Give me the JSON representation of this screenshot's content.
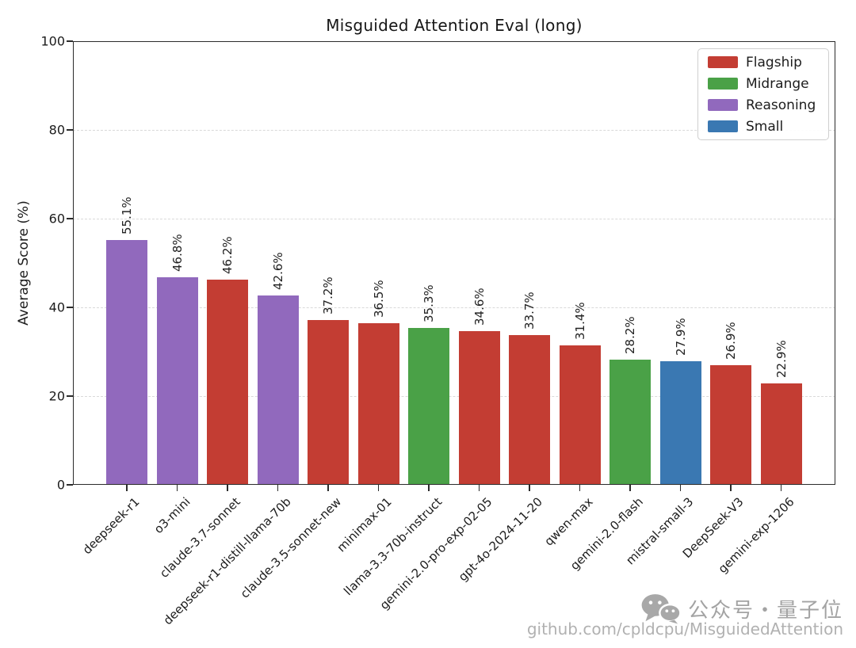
{
  "title": "Misguided Attention Eval (long)",
  "chart_data": {
    "type": "bar",
    "title": "Misguided Attention Eval (long)",
    "xlabel": "",
    "ylabel": "Average Score (%)",
    "ylim": [
      0,
      100
    ],
    "yticks": [
      0,
      20,
      40,
      60,
      80,
      100
    ],
    "grid": "horizontal-dashed",
    "legend_position": "upper right",
    "value_label_suffix": "%",
    "x_label_rotation_deg": 45,
    "value_label_rotation_deg": 90,
    "categories": [
      "deepseek-r1",
      "o3-mini",
      "claude-3.7-sonnet",
      "deepseek-r1-distill-llama-70b",
      "claude-3.5-sonnet-new",
      "minimax-01",
      "llama-3.3-70b-instruct",
      "gemini-2.0-pro-exp-02-05",
      "gpt-4o-2024-11-20",
      "qwen-max",
      "gemini-2.0-flash",
      "mistral-small-3",
      "DeepSeek-V3",
      "gemini-exp-1206"
    ],
    "values": [
      55.1,
      46.8,
      46.2,
      42.6,
      37.2,
      36.5,
      35.3,
      34.6,
      33.7,
      31.4,
      28.2,
      27.9,
      26.9,
      22.9
    ],
    "groups": [
      "Reasoning",
      "Reasoning",
      "Flagship",
      "Reasoning",
      "Flagship",
      "Flagship",
      "Midrange",
      "Flagship",
      "Flagship",
      "Flagship",
      "Midrange",
      "Small",
      "Flagship",
      "Flagship"
    ],
    "group_colors": {
      "Flagship": "#c33d33",
      "Midrange": "#4aa147",
      "Reasoning": "#9169bd",
      "Small": "#3a78b2"
    }
  },
  "legend": {
    "items": [
      {
        "label": "Flagship",
        "color": "#c33d33"
      },
      {
        "label": "Midrange",
        "color": "#4aa147"
      },
      {
        "label": "Reasoning",
        "color": "#9169bd"
      },
      {
        "label": "Small",
        "color": "#3a78b2"
      }
    ]
  },
  "watermark": {
    "icon": "wechat-icon",
    "brand_text": "公众号・量子位",
    "repo_text": "github.com/cpldcpu/MisguidedAttention"
  }
}
